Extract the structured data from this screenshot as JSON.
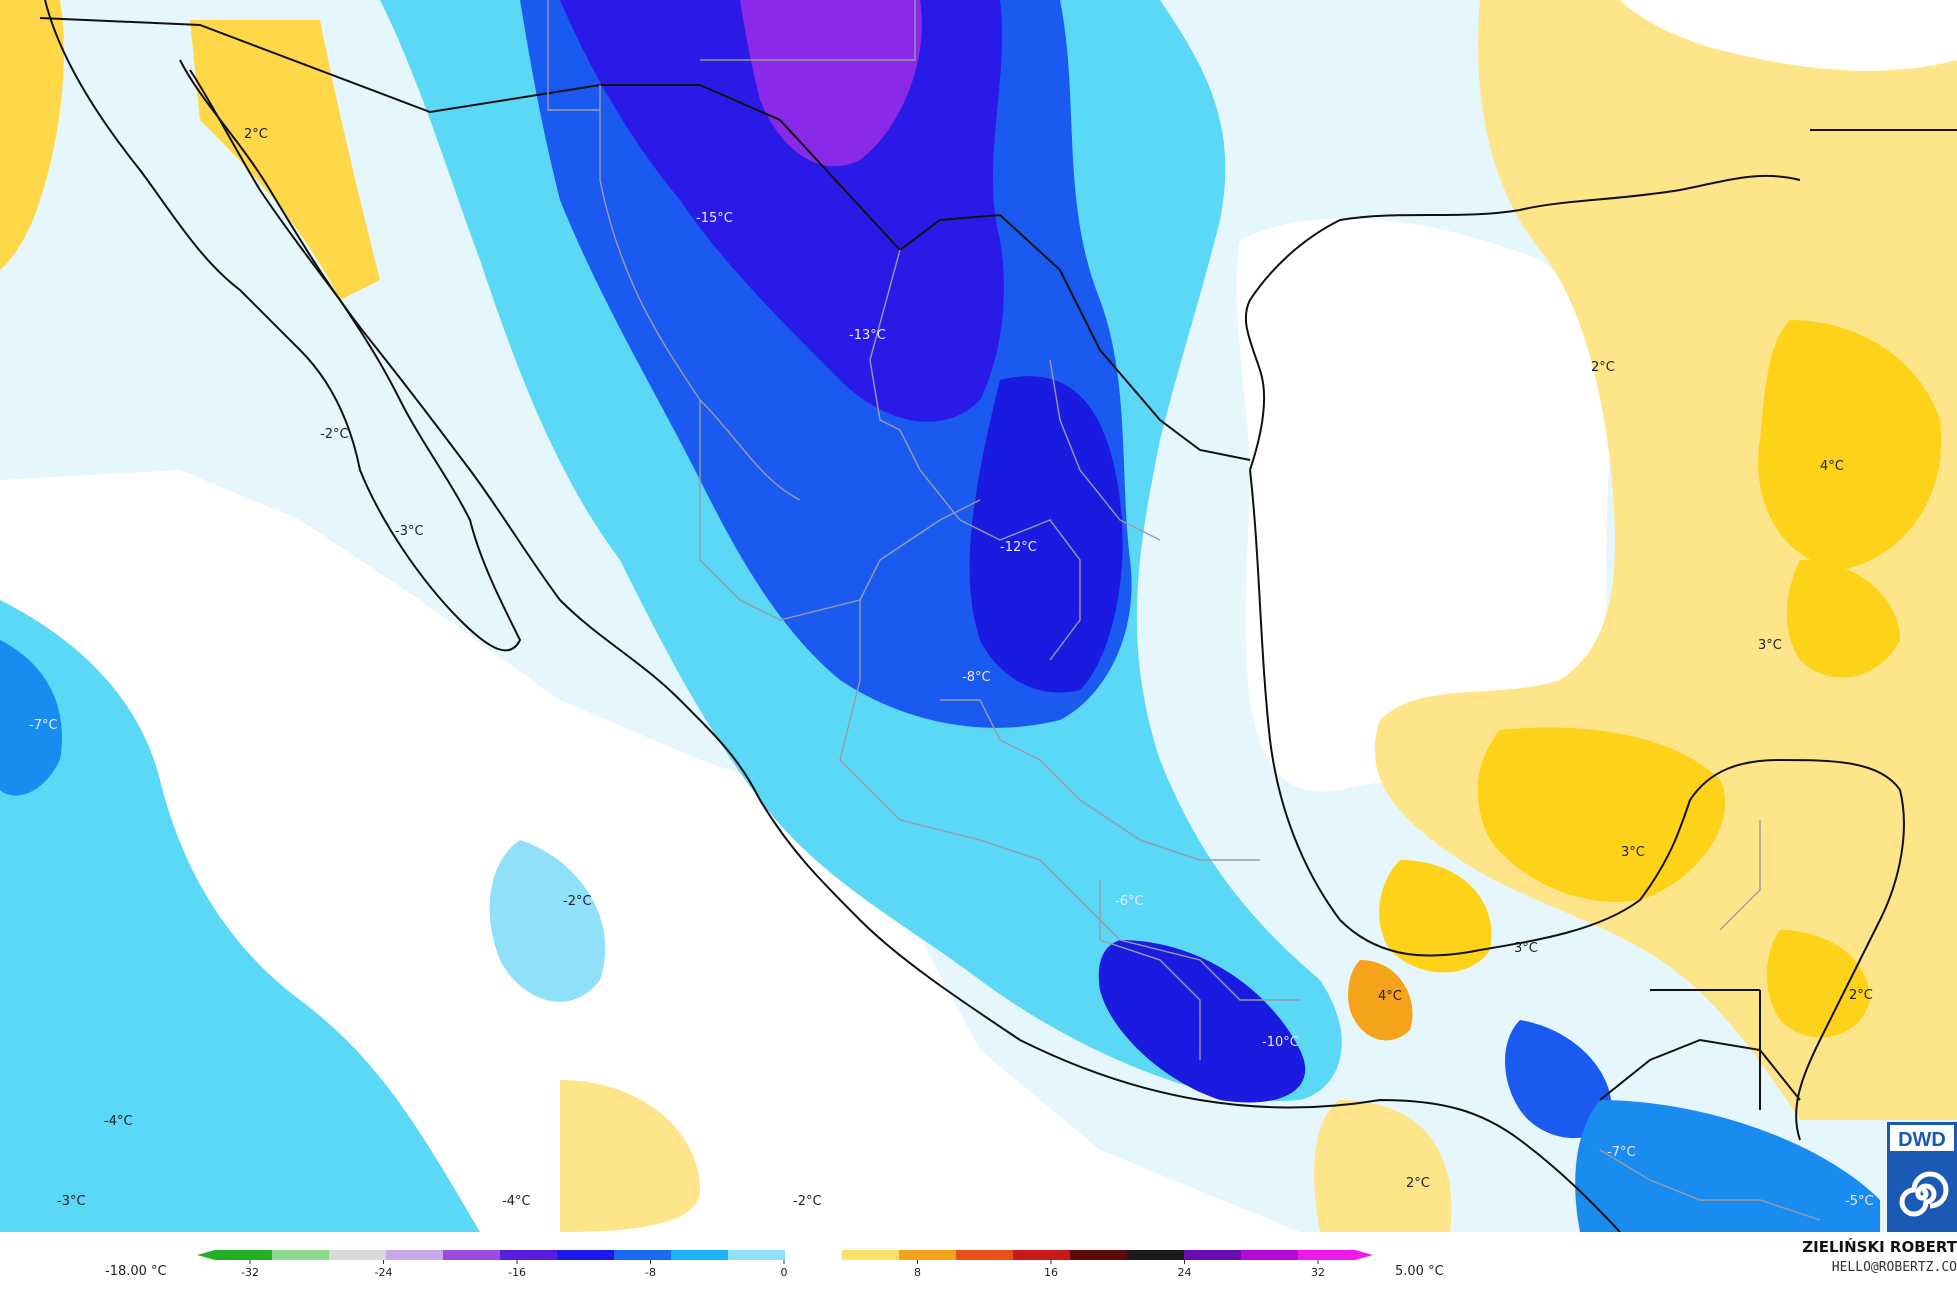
{
  "map": {
    "labels": [
      {
        "id": "baja-north",
        "text": "2°C"
      },
      {
        "id": "north-center",
        "text": "-15°C"
      },
      {
        "id": "chihuahua",
        "text": "-13°C"
      },
      {
        "id": "gulf-east",
        "text": "2°C"
      },
      {
        "id": "florida",
        "text": "4°C"
      },
      {
        "id": "baja-mid",
        "text": "-2°C"
      },
      {
        "id": "baja-south",
        "text": "-3°C"
      },
      {
        "id": "central-north",
        "text": "-12°C"
      },
      {
        "id": "gulf-south",
        "text": "3°C"
      },
      {
        "id": "central",
        "text": "-8°C"
      },
      {
        "id": "pacific-west",
        "text": "-7°C"
      },
      {
        "id": "yucatan",
        "text": "3°C"
      },
      {
        "id": "pacific-mid",
        "text": "-2°C"
      },
      {
        "id": "puebla",
        "text": "-6°C"
      },
      {
        "id": "campeche",
        "text": "3°C"
      },
      {
        "id": "veracruz",
        "text": "4°C"
      },
      {
        "id": "caribbean",
        "text": "2°C"
      },
      {
        "id": "oaxaca",
        "text": "-10°C"
      },
      {
        "id": "pacific-sw",
        "text": "-4°C"
      },
      {
        "id": "pacific-far-sw",
        "text": "-3°C"
      },
      {
        "id": "pacific-south",
        "text": "-4°C"
      },
      {
        "id": "pacific-south2",
        "text": "-2°C"
      },
      {
        "id": "pacific-se",
        "text": "2°C"
      },
      {
        "id": "guatemala",
        "text": "-7°C"
      },
      {
        "id": "honduras",
        "text": "-5°C"
      }
    ]
  },
  "legend": {
    "min_label": "-18.00 °C",
    "max_label": "5.00 °C",
    "ticks": [
      "-32",
      "-24",
      "-16",
      "-8",
      "0",
      "8",
      "16",
      "24",
      "32"
    ],
    "colors": [
      "#22b022",
      "#8fd98f",
      "#d9d9d9",
      "#c9a8e8",
      "#9b4be0",
      "#5a1de0",
      "#1a1af0",
      "#1a6af5",
      "#1ab4f5",
      "#8fe0f8",
      "#ffffff",
      "#ffe066",
      "#f5a31a",
      "#e8501a",
      "#c81a1a",
      "#5a0a0a",
      "#1a1a1a",
      "#6a0ab4",
      "#b40ad8",
      "#f01ae8"
    ]
  },
  "credit": {
    "name": "ZIELIŃSKI ROBERT",
    "email": "HELLO@ROBERTZ.CO"
  },
  "logo": {
    "text": "DWD",
    "icon": "spiral-icon"
  }
}
